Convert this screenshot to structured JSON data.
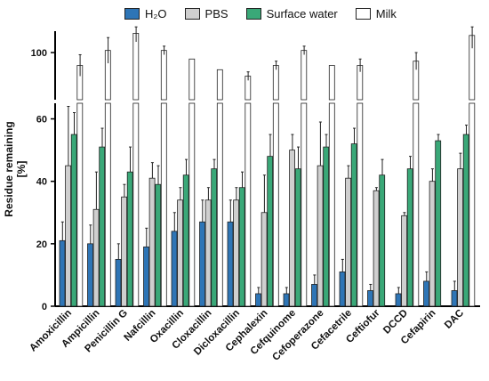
{
  "chart_data": {
    "type": "bar",
    "ylabel": "Residue remaining [%]",
    "ylabel_line1": "Residue remaining",
    "ylabel_line2": "[%]",
    "axis_break": true,
    "y_lower_range": [
      0,
      65
    ],
    "y_upper_range": [
      78,
      110
    ],
    "y_lower_ticks": [
      "0",
      "20",
      "40",
      "60"
    ],
    "y_upper_ticks": [
      "100"
    ],
    "categories": [
      "Amoxicillin",
      "Ampicillin",
      "Penicillin G",
      "Nafcillin",
      "Oxacillin",
      "Cloxacillin",
      "Dicloxacillin",
      "Cephalexin",
      "Cefquinome",
      "Cefoperazone",
      "Cefacetrile",
      "Ceftiofur",
      "DCCD",
      "Cefapirin",
      "DAC"
    ],
    "series": [
      {
        "name": "H₂O",
        "color": "#2e75b6",
        "values": [
          21,
          20,
          15,
          19,
          24,
          27,
          27,
          4,
          4,
          7,
          11,
          5,
          4,
          8,
          5
        ],
        "errors": [
          6,
          6,
          5,
          6,
          6,
          7,
          7,
          2,
          2,
          3,
          4,
          2,
          2,
          3,
          3
        ]
      },
      {
        "name": "PBS",
        "color": "#cfcfcf",
        "values": [
          45,
          31,
          35,
          41,
          34,
          34,
          34,
          30,
          50,
          45,
          41,
          37,
          29,
          40,
          44
        ],
        "errors": [
          19,
          12,
          4,
          5,
          4,
          4,
          4,
          12,
          5,
          14,
          4,
          1,
          1,
          4,
          5
        ]
      },
      {
        "name": "Surface water",
        "color": "#3aa878",
        "values": [
          55,
          51,
          43,
          39,
          42,
          44,
          38,
          48,
          44,
          51,
          52,
          42,
          44,
          53,
          55
        ],
        "errors": [
          7,
          6,
          8,
          6,
          5,
          3,
          5,
          7,
          7,
          4,
          5,
          5,
          4,
          2,
          3
        ]
      },
      {
        "name": "Milk",
        "color": "#ffffff",
        "values": [
          94,
          101,
          109,
          101,
          97,
          92,
          89,
          94,
          101,
          94,
          94,
          0,
          96,
          0,
          108
        ],
        "errors": [
          5,
          6,
          4,
          2,
          0,
          0,
          2,
          2,
          2,
          0,
          3,
          0,
          4,
          0,
          6
        ]
      }
    ]
  }
}
